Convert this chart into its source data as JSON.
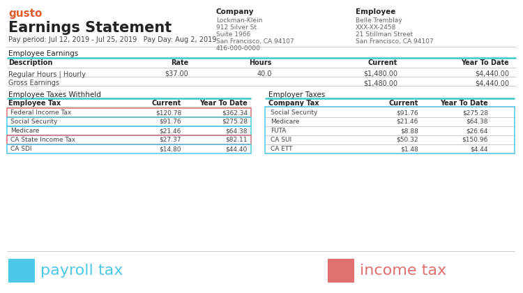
{
  "title": "Earnings Statement",
  "pay_period": "Pay period: Jul 12, 2019 - Jul 25, 2019   Pay Day: Aug 2, 2019",
  "gusto_color": "#e05a2b",
  "company_label": "Company",
  "company_info": [
    "Lockman-Klein",
    "912 Silver St.",
    "Suite 1966",
    "San Francisco, CA 94107",
    "416-000-0000"
  ],
  "employee_label": "Employee",
  "employee_info": [
    "Belle Tremblay",
    "XXX-XX-2458",
    "21 Stillman Street",
    "San Francisco, CA 94107"
  ],
  "earnings_section": "Employee Earnings",
  "earnings_headers": [
    "Description",
    "Rate",
    "Hours",
    "Current",
    "Year To Date"
  ],
  "earnings_rows": [
    [
      "Regular Hours | Hourly",
      "$37.00",
      "40.0",
      "$1,480.00",
      "$4,440.00"
    ],
    [
      "Gross Earnings",
      "",
      "",
      "$1,480.00",
      "$4,440.00"
    ]
  ],
  "emp_tax_section": "Employee Taxes Withheld",
  "emp_tax_headers": [
    "Employee Tax",
    "Current",
    "Year To Date"
  ],
  "emp_tax_rows": [
    [
      "Federal Income Tax",
      "$120.78",
      "$362.34",
      "income"
    ],
    [
      "Social Security",
      "$91.76",
      "$275.28",
      "payroll"
    ],
    [
      "Medicare",
      "$21.46",
      "$64.38",
      "payroll"
    ],
    [
      "CA State Income Tax",
      "$27.37",
      "$82.11",
      "income"
    ],
    [
      "CA SDI",
      "$14.80",
      "$44.40",
      "payroll"
    ]
  ],
  "employer_tax_section": "Employer Taxes",
  "employer_tax_headers": [
    "Company Tax",
    "Current",
    "Year To Date"
  ],
  "employer_tax_rows": [
    [
      "Social Security",
      "$91.76",
      "$275.28"
    ],
    [
      "Medicare",
      "$21.46",
      "$64.38"
    ],
    [
      "FUTA",
      "$8.88",
      "$26.64"
    ],
    [
      "CA SUI",
      "$50.32",
      "$150.96"
    ],
    [
      "CA ETT",
      "$1.48",
      "$4.44"
    ]
  ],
  "payroll_tax_color": "#4dc8e8",
  "income_tax_color": "#e07070",
  "header_line_color": "#3cc8c8",
  "income_row_border": "#e07070",
  "payroll_row_border": "#4dc8e8",
  "bg_color": "#ffffff",
  "text_dark": "#222222",
  "text_mid": "#444444",
  "text_light": "#666666",
  "divider_color": "#cccccc"
}
